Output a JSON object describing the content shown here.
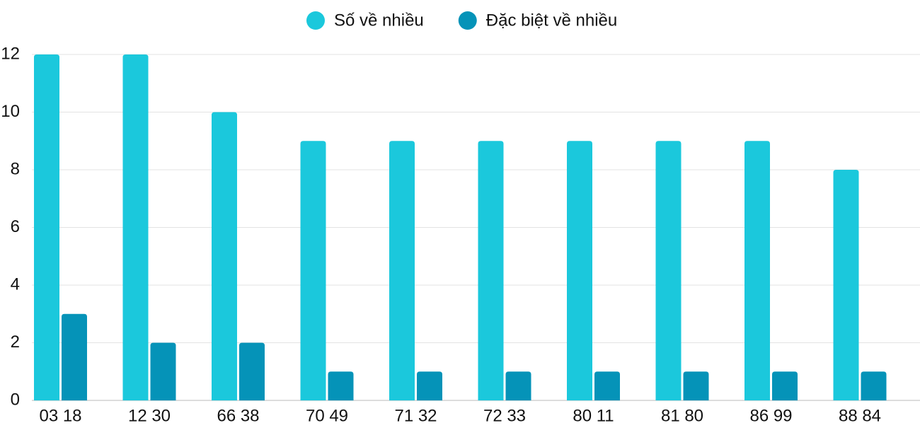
{
  "chart_data": {
    "type": "bar",
    "categories": [
      "03 18",
      "12 30",
      "66 38",
      "70 49",
      "71 32",
      "72 33",
      "80 11",
      "81 80",
      "86 99",
      "88 84"
    ],
    "series": [
      {
        "name": "Số về nhiều",
        "color": "#1bc8dc",
        "values": [
          12,
          12,
          10,
          9,
          9,
          9,
          9,
          9,
          9,
          8
        ]
      },
      {
        "name": "Đặc biệt về nhiều",
        "color": "#0593b8",
        "values": [
          3,
          2,
          2,
          1,
          1,
          1,
          1,
          1,
          1,
          1
        ]
      }
    ],
    "ylim": [
      0,
      12
    ],
    "yticks": [
      0,
      2,
      4,
      6,
      8,
      10,
      12
    ],
    "grid": true,
    "legend": "top"
  }
}
